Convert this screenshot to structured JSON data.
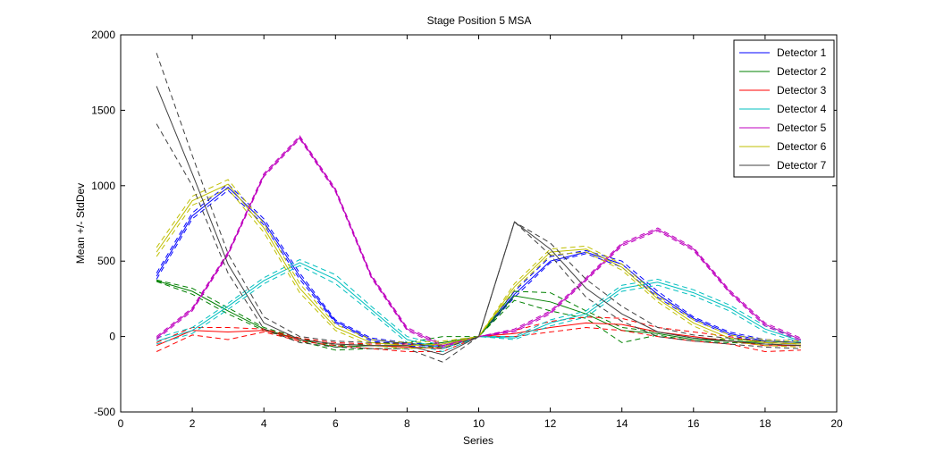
{
  "chart_data": {
    "type": "line",
    "title": "Stage Position 5 MSA",
    "xlabel": "Series",
    "ylabel": "Mean +/- StdDev",
    "xlim": [
      0,
      20
    ],
    "ylim": [
      -500,
      2000
    ],
    "xticks": [
      0,
      2,
      4,
      6,
      8,
      10,
      12,
      14,
      16,
      18,
      20
    ],
    "yticks": [
      -500,
      0,
      500,
      1000,
      1500,
      2000
    ],
    "grid": false,
    "legend_position": "top-right",
    "x": [
      1,
      2,
      3,
      4,
      5,
      6,
      7,
      8,
      9,
      10,
      11,
      12,
      13,
      14,
      15,
      16,
      17,
      18,
      19
    ],
    "series": [
      {
        "name": "Detector 1",
        "color": "#0000ff",
        "mean": [
          400,
          800,
          990,
          760,
          400,
          100,
          -20,
          -50,
          -70,
          0,
          280,
          500,
          560,
          480,
          280,
          120,
          20,
          -30,
          -40
        ],
        "upper": [
          420,
          820,
          1010,
          780,
          420,
          110,
          -10,
          -40,
          -60,
          0,
          300,
          530,
          570,
          500,
          300,
          130,
          30,
          -20,
          -30
        ],
        "lower": [
          380,
          780,
          970,
          740,
          380,
          90,
          -30,
          -60,
          -80,
          0,
          260,
          490,
          550,
          460,
          260,
          110,
          10,
          -40,
          -50
        ]
      },
      {
        "name": "Detector 2",
        "color": "#008000",
        "mean": [
          370,
          300,
          170,
          50,
          -20,
          -70,
          -60,
          -60,
          -40,
          0,
          270,
          230,
          150,
          40,
          20,
          -20,
          -30,
          -40,
          -50
        ],
        "upper": [
          375,
          320,
          190,
          60,
          -10,
          -60,
          -50,
          -40,
          0,
          0,
          300,
          290,
          170,
          60,
          30,
          -10,
          -20,
          -30,
          -40
        ],
        "lower": [
          365,
          280,
          150,
          40,
          -30,
          -90,
          -80,
          -80,
          -60,
          0,
          240,
          170,
          120,
          -40,
          10,
          -30,
          -40,
          -50,
          -60
        ]
      },
      {
        "name": "Detector 3",
        "color": "#ff0000",
        "mean": [
          -60,
          40,
          30,
          40,
          -20,
          -50,
          -60,
          -70,
          -80,
          0,
          20,
          60,
          90,
          80,
          30,
          0,
          -30,
          -60,
          -60
        ],
        "upper": [
          -40,
          60,
          60,
          50,
          -10,
          -40,
          -50,
          -50,
          -60,
          0,
          40,
          100,
          130,
          120,
          60,
          30,
          0,
          -40,
          -50
        ],
        "lower": [
          -100,
          10,
          -20,
          30,
          -30,
          -60,
          -80,
          -100,
          -100,
          0,
          0,
          30,
          60,
          40,
          0,
          -30,
          -50,
          -100,
          -90
        ]
      },
      {
        "name": "Detector 4",
        "color": "#00bfbf",
        "mean": [
          -30,
          40,
          200,
          370,
          490,
          380,
          180,
          -20,
          -80,
          0,
          -10,
          90,
          150,
          320,
          360,
          290,
          190,
          50,
          -30
        ],
        "upper": [
          -10,
          60,
          220,
          390,
          510,
          410,
          200,
          0,
          -60,
          0,
          0,
          110,
          170,
          340,
          380,
          310,
          210,
          70,
          -20
        ],
        "lower": [
          -50,
          20,
          180,
          350,
          470,
          350,
          160,
          -40,
          -100,
          0,
          -20,
          70,
          130,
          300,
          340,
          270,
          170,
          30,
          -40
        ]
      },
      {
        "name": "Detector 5",
        "color": "#bf00bf",
        "mean": [
          -10,
          180,
          550,
          1070,
          1320,
          970,
          400,
          50,
          -60,
          0,
          40,
          160,
          380,
          610,
          710,
          580,
          300,
          80,
          -20
        ],
        "upper": [
          0,
          190,
          560,
          1080,
          1330,
          980,
          410,
          60,
          -50,
          0,
          50,
          170,
          390,
          620,
          720,
          590,
          310,
          90,
          -10
        ],
        "lower": [
          -20,
          170,
          540,
          1060,
          1310,
          960,
          390,
          40,
          -70,
          0,
          30,
          150,
          370,
          600,
          700,
          570,
          290,
          70,
          -30
        ]
      },
      {
        "name": "Detector 6",
        "color": "#bfbf00",
        "mean": [
          560,
          900,
          1010,
          720,
          320,
          60,
          -40,
          -60,
          -50,
          0,
          330,
          560,
          580,
          460,
          250,
          90,
          -10,
          -40,
          -50
        ],
        "upper": [
          590,
          930,
          1040,
          750,
          350,
          80,
          -20,
          -40,
          -30,
          0,
          350,
          580,
          600,
          480,
          270,
          110,
          10,
          -20,
          -30
        ],
        "lower": [
          530,
          870,
          980,
          690,
          290,
          40,
          -60,
          -80,
          -70,
          0,
          310,
          540,
          560,
          440,
          230,
          70,
          -30,
          -60,
          -70
        ]
      },
      {
        "name": "Detector 7",
        "color": "#404040",
        "mean": [
          1660,
          1080,
          480,
          90,
          -20,
          -50,
          -60,
          -60,
          -120,
          0,
          760,
          580,
          320,
          150,
          30,
          -10,
          -30,
          -50,
          -60
        ],
        "upper": [
          1880,
          1200,
          550,
          130,
          0,
          -30,
          -40,
          -40,
          -80,
          0,
          760,
          620,
          380,
          200,
          60,
          10,
          -10,
          -30,
          -40
        ],
        "lower": [
          1410,
          1000,
          420,
          50,
          -40,
          -70,
          -80,
          -80,
          -170,
          0,
          760,
          540,
          260,
          100,
          0,
          -30,
          -50,
          -70,
          -80
        ]
      }
    ]
  }
}
